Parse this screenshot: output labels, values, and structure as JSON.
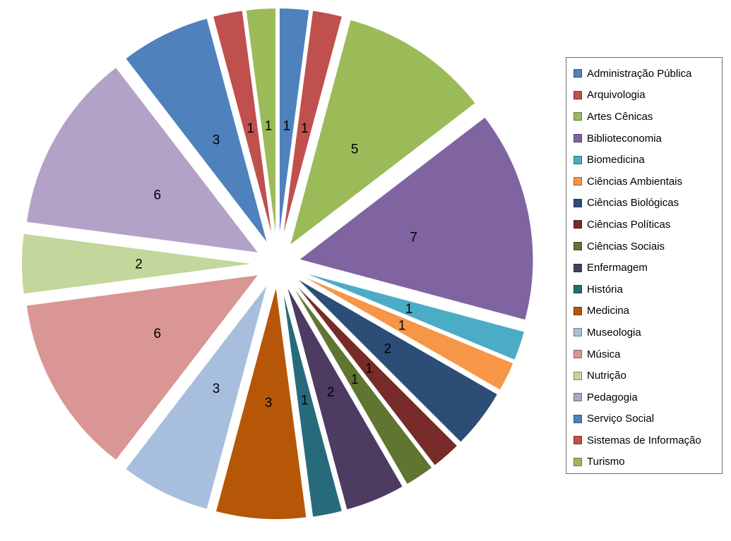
{
  "chart_data": {
    "type": "pie",
    "title": "",
    "style": "exploded",
    "legend_position": "right",
    "data_labels": "value",
    "categories": [
      "Administração Pública",
      "Arquivologia",
      "Artes Cênicas",
      "Biblioteconomia",
      "Biomedicina",
      "Ciências Ambientais",
      "Ciências Biológicas",
      "Ciências Políticas",
      "Ciências Sociais",
      "Enfermagem",
      "História",
      "Medicina",
      "Museologia",
      "Música",
      "Nutrição",
      "Pedagogia",
      "Serviço Social",
      "Sistemas de Informação",
      "Turismo"
    ],
    "values": [
      1,
      1,
      5,
      7,
      1,
      1,
      2,
      1,
      1,
      2,
      1,
      3,
      3,
      6,
      2,
      6,
      3,
      1,
      1
    ],
    "total": 48,
    "colors": [
      "#4F81BD",
      "#C0504D",
      "#9BBB59",
      "#8064A2",
      "#4BACC6",
      "#F79646",
      "#2C4D75",
      "#772C2A",
      "#5F7530",
      "#4D3B62",
      "#276A7C",
      "#B65708",
      "#A7BFDD",
      "#D99694",
      "#C3D69B",
      "#B3A2C7",
      "#4F81BD",
      "#C0504D",
      "#9BBB59"
    ],
    "slice_border_color": "#FFFFFF",
    "label_color": "#000000",
    "legend_border_color": "#6E6E6E"
  }
}
